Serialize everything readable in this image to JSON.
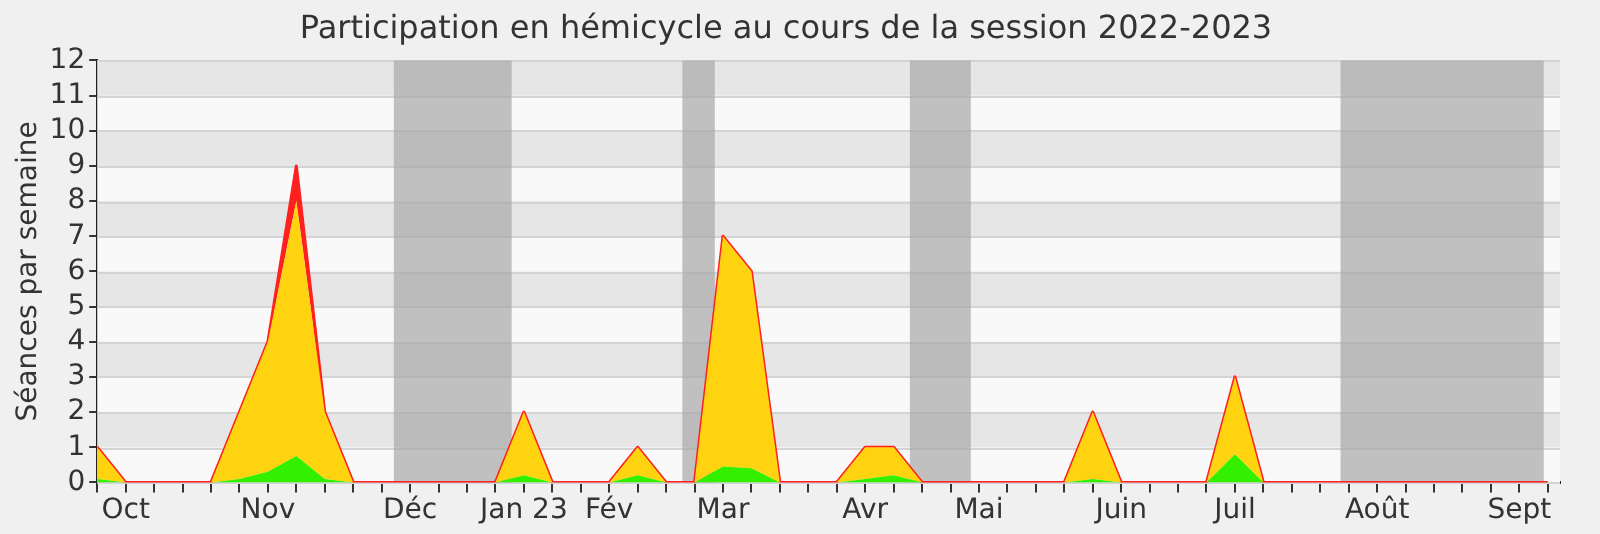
{
  "chart_data": {
    "type": "area",
    "title": "Participation en hémicycle au cours de la session 2022-2023",
    "ylabel": "Séances par semaine",
    "x": [
      "2022-09-28",
      "2022-10-05",
      "2022-10-12",
      "2022-10-19",
      "2022-10-26",
      "2022-11-02",
      "2022-11-09",
      "2022-11-16",
      "2022-11-23",
      "2022-11-30",
      "2022-12-07",
      "2022-12-14",
      "2022-12-21",
      "2022-12-28",
      "2023-01-04",
      "2023-01-11",
      "2023-01-18",
      "2023-01-25",
      "2023-02-01",
      "2023-02-08",
      "2023-02-15",
      "2023-02-22",
      "2023-03-01",
      "2023-03-08",
      "2023-03-15",
      "2023-03-22",
      "2023-03-29",
      "2023-04-05",
      "2023-04-12",
      "2023-04-19",
      "2023-04-26",
      "2023-05-03",
      "2023-05-10",
      "2023-05-17",
      "2023-05-24",
      "2023-05-31",
      "2023-06-07",
      "2023-06-14",
      "2023-06-21",
      "2023-06-28",
      "2023-07-05",
      "2023-07-12",
      "2023-07-19",
      "2023-07-26",
      "2023-08-02",
      "2023-08-09",
      "2023-08-16",
      "2023-08-23",
      "2023-08-30",
      "2023-09-06",
      "2023-09-13",
      "2023-09-20"
    ],
    "stacked": true,
    "series": [
      {
        "color": "#33f000",
        "values": [
          0.1,
          0,
          0,
          0,
          0,
          0.1,
          0.3,
          0.75,
          0.1,
          0,
          0,
          0,
          0,
          0,
          0,
          0.2,
          0,
          0,
          0,
          0.2,
          0,
          0,
          0.45,
          0.4,
          0,
          0,
          0,
          0.1,
          0.2,
          0,
          0,
          0,
          0,
          0,
          0,
          0.1,
          0,
          0,
          0,
          0,
          0.8,
          0,
          0,
          0,
          0,
          0,
          0,
          0,
          0,
          0,
          0,
          0
        ]
      },
      {
        "color": "#ffd310",
        "values": [
          0.9,
          0,
          0,
          0,
          0,
          1.9,
          3.7,
          7.25,
          1.9,
          0,
          0,
          0,
          0,
          0,
          0,
          1.8,
          0,
          0,
          0,
          0.8,
          0,
          0,
          6.55,
          5.6,
          0,
          0,
          0,
          0.9,
          0.8,
          0,
          0,
          0,
          0,
          0,
          0,
          1.9,
          0,
          0,
          0,
          0,
          2.2,
          0,
          0,
          0,
          0,
          0,
          0,
          0,
          0,
          0,
          0,
          0
        ]
      },
      {
        "color": "#ff2020",
        "values": [
          0,
          0,
          0,
          0,
          0,
          0,
          0,
          1,
          0,
          0,
          0,
          0,
          0,
          0,
          0,
          0,
          0,
          0,
          0,
          0,
          0,
          0,
          0,
          0,
          0,
          0,
          0,
          0,
          0,
          0,
          0,
          0,
          0,
          0,
          0,
          0,
          0,
          0,
          0,
          0,
          0,
          0,
          0,
          0,
          0,
          0,
          0,
          0,
          0,
          0,
          0,
          0
        ]
      }
    ],
    "xlim": [
      "2022-09-28",
      "2023-09-23"
    ],
    "xticks": [
      {
        "value": "2022-09-28",
        "label": null
      },
      {
        "value": "2022-10-05",
        "label": "Oct"
      },
      {
        "value": "2022-10-12",
        "label": null
      },
      {
        "value": "2022-10-19",
        "label": null
      },
      {
        "value": "2022-10-26",
        "label": null
      },
      {
        "value": "2022-11-02",
        "label": null
      },
      {
        "value": "2022-11-09",
        "label": "Nov"
      },
      {
        "value": "2022-11-16",
        "label": null
      },
      {
        "value": "2022-11-23",
        "label": null
      },
      {
        "value": "2022-11-30",
        "label": null
      },
      {
        "value": "2022-12-07",
        "label": null
      },
      {
        "value": "2022-12-14",
        "label": "Déc"
      },
      {
        "value": "2022-12-21",
        "label": null
      },
      {
        "value": "2022-12-28",
        "label": null
      },
      {
        "value": "2023-01-04",
        "label": null
      },
      {
        "value": "2023-01-11",
        "label": "Jan 23"
      },
      {
        "value": "2023-01-18",
        "label": null
      },
      {
        "value": "2023-01-25",
        "label": null
      },
      {
        "value": "2023-02-01",
        "label": "Fév"
      },
      {
        "value": "2023-02-08",
        "label": null
      },
      {
        "value": "2023-02-15",
        "label": null
      },
      {
        "value": "2023-02-22",
        "label": null
      },
      {
        "value": "2023-03-01",
        "label": "Mar"
      },
      {
        "value": "2023-03-08",
        "label": null
      },
      {
        "value": "2023-03-15",
        "label": null
      },
      {
        "value": "2023-03-22",
        "label": null
      },
      {
        "value": "2023-03-29",
        "label": null
      },
      {
        "value": "2023-04-05",
        "label": "Avr"
      },
      {
        "value": "2023-04-12",
        "label": null
      },
      {
        "value": "2023-04-19",
        "label": null
      },
      {
        "value": "2023-04-26",
        "label": null
      },
      {
        "value": "2023-05-03",
        "label": "Mai"
      },
      {
        "value": "2023-05-10",
        "label": null
      },
      {
        "value": "2023-05-17",
        "label": null
      },
      {
        "value": "2023-05-24",
        "label": null
      },
      {
        "value": "2023-05-31",
        "label": null
      },
      {
        "value": "2023-06-07",
        "label": "Juin"
      },
      {
        "value": "2023-06-14",
        "label": null
      },
      {
        "value": "2023-06-21",
        "label": null
      },
      {
        "value": "2023-06-28",
        "label": null
      },
      {
        "value": "2023-07-05",
        "label": "Juil"
      },
      {
        "value": "2023-07-12",
        "label": null
      },
      {
        "value": "2023-07-19",
        "label": null
      },
      {
        "value": "2023-07-26",
        "label": null
      },
      {
        "value": "2023-08-02",
        "label": null
      },
      {
        "value": "2023-08-09",
        "label": "Août"
      },
      {
        "value": "2023-08-16",
        "label": null
      },
      {
        "value": "2023-08-23",
        "label": null
      },
      {
        "value": "2023-08-30",
        "label": null
      },
      {
        "value": "2023-09-06",
        "label": null
      },
      {
        "value": "2023-09-13",
        "label": "Sept"
      },
      {
        "value": "2023-09-20",
        "label": null
      }
    ],
    "ylim": [
      0,
      12
    ],
    "yticks": [
      0,
      1,
      2,
      3,
      4,
      5,
      6,
      7,
      8,
      9,
      10,
      11,
      12
    ],
    "grid": "y",
    "bands": [
      {
        "axis": "x",
        "from": "2022-12-10",
        "to": "2023-01-08",
        "color": "#a8a8a8"
      },
      {
        "axis": "x",
        "from": "2023-02-19",
        "to": "2023-02-27",
        "color": "#a8a8a8"
      },
      {
        "axis": "x",
        "from": "2023-04-16",
        "to": "2023-05-01",
        "color": "#a8a8a8"
      },
      {
        "axis": "x",
        "from": "2023-07-31",
        "to": "2023-09-19",
        "color": "#a8a8a8"
      }
    ]
  }
}
